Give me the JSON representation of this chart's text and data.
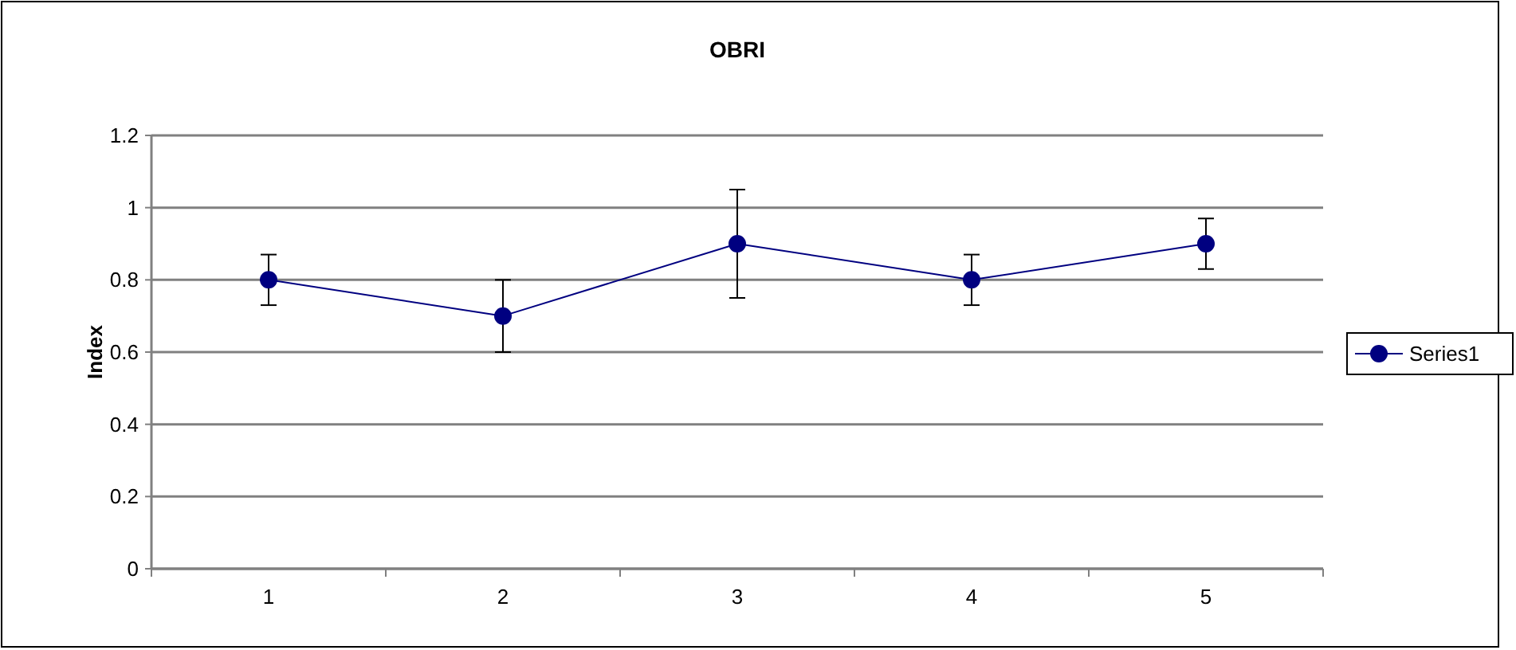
{
  "chart_data": {
    "type": "line",
    "title": "OBRI",
    "ylabel": "Index",
    "categories": [
      "1",
      "2",
      "3",
      "4",
      "5"
    ],
    "series": [
      {
        "name": "Series1",
        "color": "#000080",
        "values": [
          0.8,
          0.7,
          0.9,
          0.8,
          0.9
        ],
        "errors": [
          0.07,
          0.1,
          0.15,
          0.07,
          0.07
        ]
      }
    ],
    "ylim": [
      0,
      1.2
    ],
    "yticks": [
      0,
      0.2,
      0.4,
      0.6,
      0.8,
      1,
      1.2
    ],
    "grid": "y",
    "legend": "right",
    "marker": "circle",
    "line_style": "solid"
  }
}
